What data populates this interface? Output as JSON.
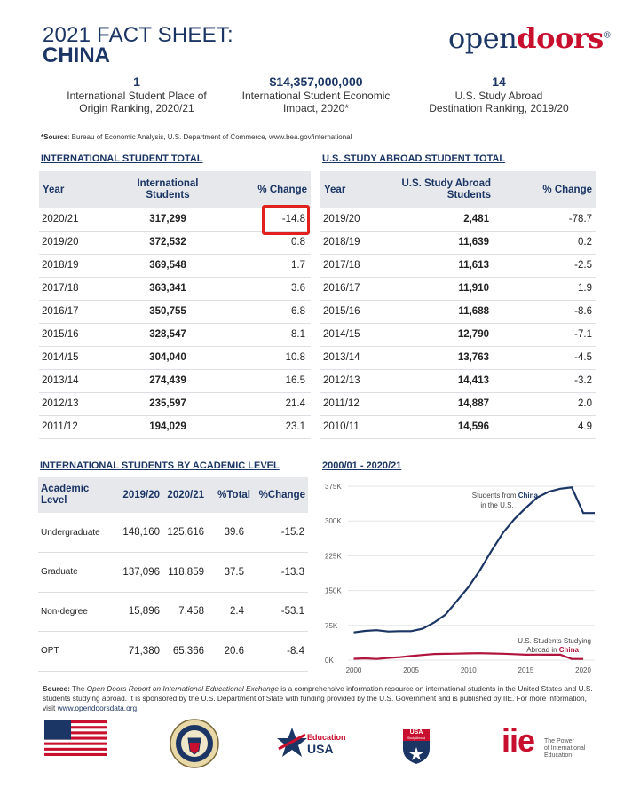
{
  "header": {
    "title_line1": "2021 FACT SHEET:",
    "title_line2": "CHINA",
    "logo_open": "open",
    "logo_doors": "doors",
    "logo_mark": "®"
  },
  "stats": [
    {
      "value": "1",
      "label_line1": "International Student Place of",
      "label_line2": "Origin Ranking, 2020/21"
    },
    {
      "value": "$14,357,000,000",
      "label_line1": "International Student Economic",
      "label_line2": "Impact, 2020*"
    },
    {
      "value": "14",
      "label_line1": "U.S. Study Abroad",
      "label_line2": "Destination Ranking, 2019/20"
    }
  ],
  "source_note": {
    "label": "*Source",
    "text": ": Bureau of Economic Analysis, U.S. Department of Commerce, www.bea.gov/international"
  },
  "intl_total": {
    "heading": "INTERNATIONAL STUDENT TOTAL",
    "col_year": "Year",
    "col_students_1": "International",
    "col_students_2": "Students",
    "col_change": "% Change",
    "rows": [
      {
        "year": "2020/21",
        "students": "317,299",
        "change": "-14.8"
      },
      {
        "year": "2019/20",
        "students": "372,532",
        "change": "0.8"
      },
      {
        "year": "2018/19",
        "students": "369,548",
        "change": "1.7"
      },
      {
        "year": "2017/18",
        "students": "363,341",
        "change": "3.6"
      },
      {
        "year": "2016/17",
        "students": "350,755",
        "change": "6.8"
      },
      {
        "year": "2015/16",
        "students": "328,547",
        "change": "8.1"
      },
      {
        "year": "2014/15",
        "students": "304,040",
        "change": "10.8"
      },
      {
        "year": "2013/14",
        "students": "274,439",
        "change": "16.5"
      },
      {
        "year": "2012/13",
        "students": "235,597",
        "change": "21.4"
      },
      {
        "year": "2011/12",
        "students": "194,029",
        "change": "23.1"
      }
    ]
  },
  "abroad_total": {
    "heading": "U.S. STUDY ABROAD STUDENT TOTAL",
    "col_year": "Year",
    "col_students_1": "U.S. Study Abroad",
    "col_students_2": "Students",
    "col_change": "% Change",
    "rows": [
      {
        "year": "2019/20",
        "students": "2,481",
        "change": "-78.7"
      },
      {
        "year": "2018/19",
        "students": "11,639",
        "change": "0.2"
      },
      {
        "year": "2017/18",
        "students": "11,613",
        "change": "-2.5"
      },
      {
        "year": "2016/17",
        "students": "11,910",
        "change": "1.9"
      },
      {
        "year": "2015/16",
        "students": "11,688",
        "change": "-8.6"
      },
      {
        "year": "2014/15",
        "students": "12,790",
        "change": "-7.1"
      },
      {
        "year": "2013/14",
        "students": "13,763",
        "change": "-4.5"
      },
      {
        "year": "2012/13",
        "students": "14,413",
        "change": "-3.2"
      },
      {
        "year": "2011/12",
        "students": "14,887",
        "change": "2.0"
      },
      {
        "year": "2010/11",
        "students": "14,596",
        "change": "4.9"
      }
    ]
  },
  "academic": {
    "heading": "INTERNATIONAL STUDENTS BY ACADEMIC LEVEL",
    "col_level_1": "Academic",
    "col_level_2": "Level",
    "col_a": "2019/20",
    "col_b": "2020/21",
    "col_total": "%Total",
    "col_change": "%Change",
    "rows": [
      {
        "level": "Undergraduate",
        "a": "148,160",
        "b": "125,616",
        "total": "39.6",
        "change": "-15.2"
      },
      {
        "level": "Graduate",
        "a": "137,096",
        "b": "118,859",
        "total": "37.5",
        "change": "-13.3"
      },
      {
        "level": "Non-degree",
        "a": "15,896",
        "b": "7,458",
        "total": "2.4",
        "change": "-53.1"
      },
      {
        "level": "OPT",
        "a": "71,380",
        "b": "65,366",
        "total": "20.6",
        "change": "-8.4"
      }
    ]
  },
  "chart_data": {
    "type": "line",
    "title": "2000/01 - 2020/21",
    "ylim": [
      0,
      375000
    ],
    "xlim": [
      1999.5,
      2021
    ],
    "y_ticks": [
      "0K",
      "75K",
      "150K",
      "225K",
      "300K",
      "375K"
    ],
    "x_ticks": [
      "2000",
      "2005",
      "2010",
      "2015",
      "2020"
    ],
    "grid": true,
    "series": [
      {
        "name": "Students from China in the U.S.",
        "label_prefix": "Students from ",
        "label_bold": "China",
        "label_suffix": "in the U.S.",
        "color": "#1b3564",
        "x": [
          2000,
          2001,
          2002,
          2003,
          2004,
          2005,
          2006,
          2007,
          2008,
          2009,
          2010,
          2011,
          2012,
          2013,
          2014,
          2015,
          2016,
          2017,
          2018,
          2019,
          2020,
          2021
        ],
        "values": [
          59939,
          63211,
          64757,
          61765,
          62523,
          62582,
          67723,
          81127,
          98235,
          127628,
          157558,
          194029,
          235597,
          274439,
          304040,
          328547,
          350755,
          363341,
          369548,
          372532,
          317299,
          317299
        ]
      },
      {
        "name": "U.S. Students Studying Abroad in China",
        "label_prefix": "U.S. Students Studying",
        "label_mid": "Abroad in ",
        "label_bold": "China",
        "color": "#b0143c",
        "x": [
          2000,
          2001,
          2002,
          2003,
          2004,
          2005,
          2006,
          2007,
          2008,
          2009,
          2010,
          2011,
          2012,
          2013,
          2014,
          2015,
          2016,
          2017,
          2018,
          2019,
          2020
        ],
        "values": [
          2949,
          3911,
          2493,
          4737,
          6389,
          8830,
          11064,
          13165,
          13674,
          13910,
          14596,
          14887,
          14413,
          13763,
          12790,
          11688,
          11910,
          11613,
          11639,
          2481,
          2481
        ]
      }
    ]
  },
  "footer": {
    "source_label": "Source:",
    "text_a": " The ",
    "text_italic": "Open Doors Report on International Educational Exchange",
    "text_b": " is a comprehensive information resource on international students in the United States and U.S. students studying abroad. It is sponsored by the U.S. Department of State with funding provided by the U.S. Government and is published by IIE. For more information, visit ",
    "link": "www.opendoorsdata.org",
    "text_end": ".",
    "logos": {
      "edusa_1": "Education",
      "edusa_2": "USA",
      "studyabroad_1": "USA",
      "studyabroad_2": "StudyAbroad",
      "iie": "iie",
      "iie_tag_1": "The Power",
      "iie_tag_2": "of International",
      "iie_tag_3": "Education"
    }
  }
}
